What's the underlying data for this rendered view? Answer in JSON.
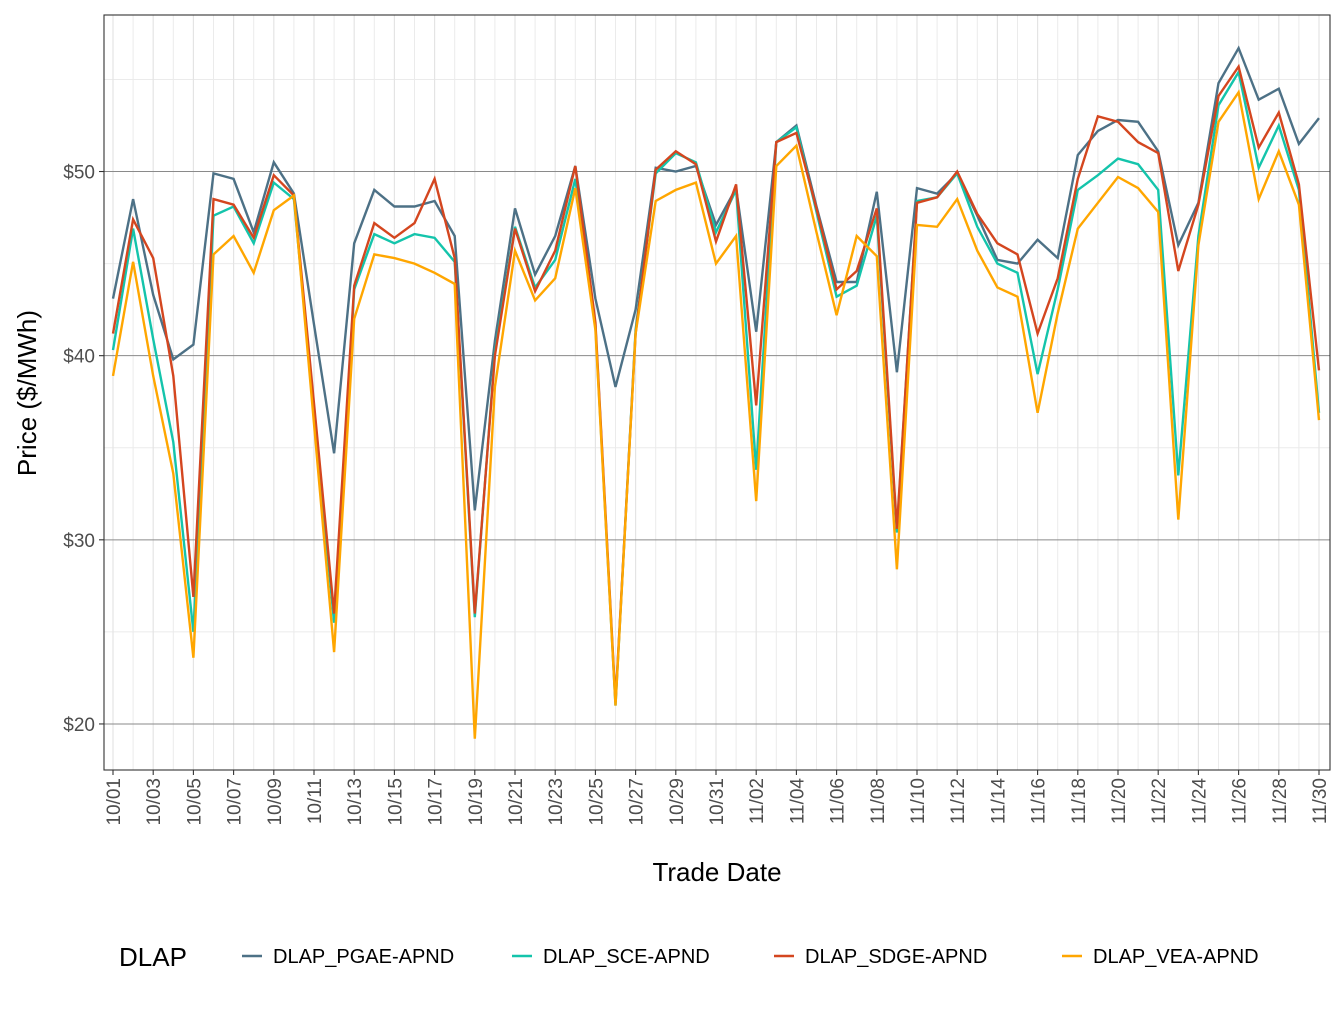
{
  "chart_data": {
    "type": "line",
    "title": "",
    "xlabel": "Trade Date",
    "ylabel": "Price ($/MWh)",
    "ylim": [
      17.5,
      58.5
    ],
    "y_ticks": [
      20,
      30,
      40,
      50
    ],
    "y_tick_labels": [
      "$20",
      "$30",
      "$40",
      "$50"
    ],
    "grid": true,
    "legend_title": "DLAP",
    "legend_position": "bottom",
    "x": [
      "10/01",
      "10/02",
      "10/03",
      "10/04",
      "10/05",
      "10/06",
      "10/07",
      "10/08",
      "10/09",
      "10/10",
      "10/11",
      "10/12",
      "10/13",
      "10/14",
      "10/15",
      "10/16",
      "10/17",
      "10/18",
      "10/19",
      "10/20",
      "10/21",
      "10/22",
      "10/23",
      "10/24",
      "10/25",
      "10/26",
      "10/27",
      "10/28",
      "10/29",
      "10/30",
      "10/31",
      "11/01",
      "11/02",
      "11/03",
      "11/04",
      "11/05",
      "11/06",
      "11/07",
      "11/08",
      "11/09",
      "11/10",
      "11/11",
      "11/12",
      "11/13",
      "11/14",
      "11/15",
      "11/16",
      "11/17",
      "11/18",
      "11/19",
      "11/20",
      "11/21",
      "11/22",
      "11/23",
      "11/24",
      "11/25",
      "11/26",
      "11/27",
      "11/28",
      "11/29",
      "11/30"
    ],
    "x_tick_labels": [
      "10/01",
      "10/03",
      "10/05",
      "10/07",
      "10/09",
      "10/11",
      "10/13",
      "10/15",
      "10/17",
      "10/19",
      "10/21",
      "10/23",
      "10/25",
      "10/27",
      "10/29",
      "10/31",
      "11/02",
      "11/04",
      "11/06",
      "11/08",
      "11/10",
      "11/12",
      "11/14",
      "11/16",
      "11/18",
      "11/20",
      "11/22",
      "11/24",
      "11/26",
      "11/28",
      "11/30"
    ],
    "series": [
      {
        "name": "DLAP_PGAE-APND",
        "color": "#4d7186",
        "values": [
          43.1,
          48.5,
          43.3,
          39.8,
          40.6,
          49.9,
          49.6,
          46.7,
          50.5,
          48.8,
          41.7,
          34.7,
          46.1,
          49.0,
          48.1,
          48.1,
          48.4,
          46.5,
          31.6,
          40.8,
          48.0,
          44.4,
          46.5,
          50.3,
          43.1,
          38.3,
          42.5,
          50.2,
          50.0,
          50.3,
          47.1,
          49.1,
          41.3,
          51.6,
          52.5,
          48.1,
          44.0,
          44.0,
          48.9,
          39.1,
          49.1,
          48.8,
          49.9,
          47.6,
          45.2,
          45.0,
          46.3,
          45.3,
          50.9,
          52.2,
          52.8,
          52.7,
          51.1,
          46.0,
          48.3,
          54.8,
          56.7,
          53.9,
          54.5,
          51.5,
          52.9
        ]
      },
      {
        "name": "DLAP_SCE-APND",
        "color": "#14c4ab",
        "values": [
          40.3,
          46.9,
          40.9,
          35.3,
          25.0,
          47.6,
          48.1,
          46.1,
          49.4,
          48.5,
          37.0,
          25.5,
          43.6,
          46.6,
          46.1,
          46.6,
          46.4,
          45.1,
          25.8,
          40.2,
          47.0,
          43.7,
          45.2,
          49.6,
          41.6,
          21.0,
          41.4,
          49.9,
          51.0,
          50.5,
          46.7,
          49.0,
          33.8,
          51.6,
          52.4,
          47.8,
          43.2,
          43.8,
          47.6,
          30.4,
          48.4,
          48.6,
          49.9,
          47.0,
          45.0,
          44.5,
          39.0,
          43.6,
          49.0,
          49.8,
          50.7,
          50.4,
          49.0,
          33.5,
          46.5,
          53.6,
          55.4,
          50.2,
          52.5,
          49.0,
          36.9
        ]
      },
      {
        "name": "DLAP_SDGE-APND",
        "color": "#d4461f",
        "values": [
          41.2,
          47.4,
          45.3,
          38.9,
          26.9,
          48.5,
          48.2,
          46.4,
          49.8,
          48.7,
          37.4,
          26.0,
          43.8,
          47.2,
          46.4,
          47.2,
          49.6,
          45.3,
          26.0,
          40.0,
          46.9,
          43.5,
          45.7,
          50.3,
          41.8,
          21.2,
          41.2,
          50.1,
          51.1,
          50.4,
          46.2,
          49.3,
          37.3,
          51.6,
          52.1,
          48.0,
          43.6,
          44.6,
          48.0,
          30.6,
          48.3,
          48.6,
          50.0,
          47.7,
          46.1,
          45.5,
          41.2,
          44.2,
          49.6,
          53.0,
          52.7,
          51.6,
          51.0,
          44.6,
          48.2,
          54.1,
          55.7,
          51.3,
          53.2,
          49.3,
          39.2
        ]
      },
      {
        "name": "DLAP_VEA-APND",
        "color": "#ffa600",
        "values": [
          38.9,
          45.1,
          38.9,
          33.6,
          23.6,
          45.5,
          46.5,
          44.5,
          47.9,
          48.7,
          36.3,
          23.9,
          42.0,
          45.5,
          45.3,
          45.0,
          44.5,
          43.9,
          19.2,
          38.3,
          45.7,
          43.0,
          44.2,
          49.1,
          41.4,
          21.0,
          41.2,
          48.4,
          49.0,
          49.4,
          45.0,
          46.5,
          32.1,
          50.3,
          51.4,
          46.7,
          42.2,
          46.5,
          45.4,
          28.4,
          47.1,
          47.0,
          48.5,
          45.7,
          43.7,
          43.2,
          36.9,
          42.3,
          46.9,
          48.3,
          49.7,
          49.1,
          47.8,
          31.1,
          46.0,
          52.7,
          54.3,
          48.5,
          51.1,
          48.2,
          36.5
        ]
      }
    ]
  }
}
